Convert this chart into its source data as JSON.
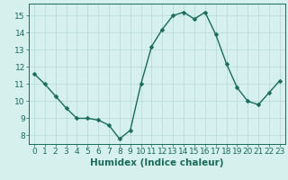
{
  "x": [
    0,
    1,
    2,
    3,
    4,
    5,
    6,
    7,
    8,
    9,
    10,
    11,
    12,
    13,
    14,
    15,
    16,
    17,
    18,
    19,
    20,
    21,
    22,
    23
  ],
  "y": [
    11.6,
    11.0,
    10.3,
    9.6,
    9.0,
    9.0,
    8.9,
    8.6,
    7.8,
    8.3,
    11.0,
    13.2,
    14.2,
    15.0,
    15.2,
    14.8,
    15.2,
    13.9,
    12.2,
    10.8,
    10.0,
    9.8,
    10.5,
    11.2
  ],
  "line_color": "#1a6b5a",
  "marker": "D",
  "marker_size": 2.5,
  "bg_color": "#d6f0ee",
  "grid_color": "#b5d9d5",
  "tick_color": "#1a6b5a",
  "label_color": "#1a6b5a",
  "xlabel": "Humidex (Indice chaleur)",
  "xlim": [
    -0.5,
    23.5
  ],
  "ylim": [
    7.5,
    15.7
  ],
  "yticks": [
    8,
    9,
    10,
    11,
    12,
    13,
    14,
    15
  ],
  "xticks": [
    0,
    1,
    2,
    3,
    4,
    5,
    6,
    7,
    8,
    9,
    10,
    11,
    12,
    13,
    14,
    15,
    16,
    17,
    18,
    19,
    20,
    21,
    22,
    23
  ],
  "font_size": 6.5,
  "xlabel_font_size": 7.5,
  "linewidth": 1.0
}
